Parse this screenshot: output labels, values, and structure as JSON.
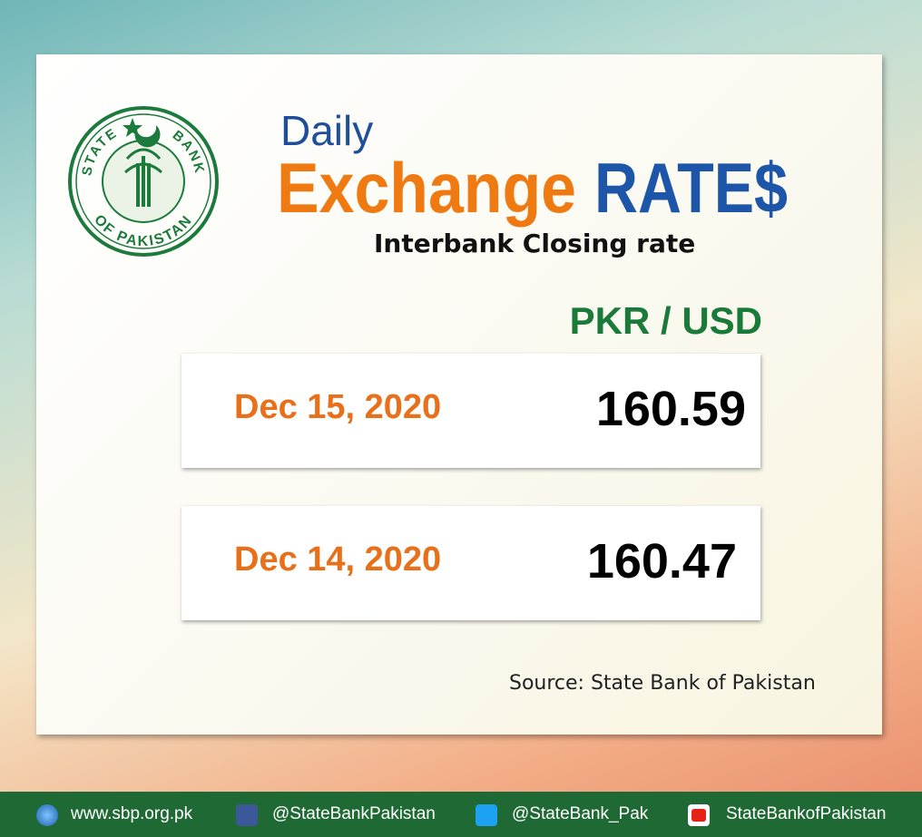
{
  "logo": {
    "top_left": "STATE",
    "top_right": "BANK",
    "bottom": "OF PAKISTAN"
  },
  "header": {
    "line1": "Daily",
    "word1": "Exchange",
    "word2": "RATE$",
    "subtitle": "Interbank Closing rate"
  },
  "currency_pair": "PKR / USD",
  "rates": [
    {
      "date": "Dec 15, 2020",
      "rate": 160.59
    },
    {
      "date": "Dec 14, 2020",
      "rate": 160.47
    }
  ],
  "source": "Source: State Bank of Pakistan",
  "footer": {
    "website": "www.sbp.org.pk",
    "facebook": "@StateBankPakistan",
    "twitter": "@StateBank_Pak",
    "youtube": "StateBankofPakistan"
  }
}
